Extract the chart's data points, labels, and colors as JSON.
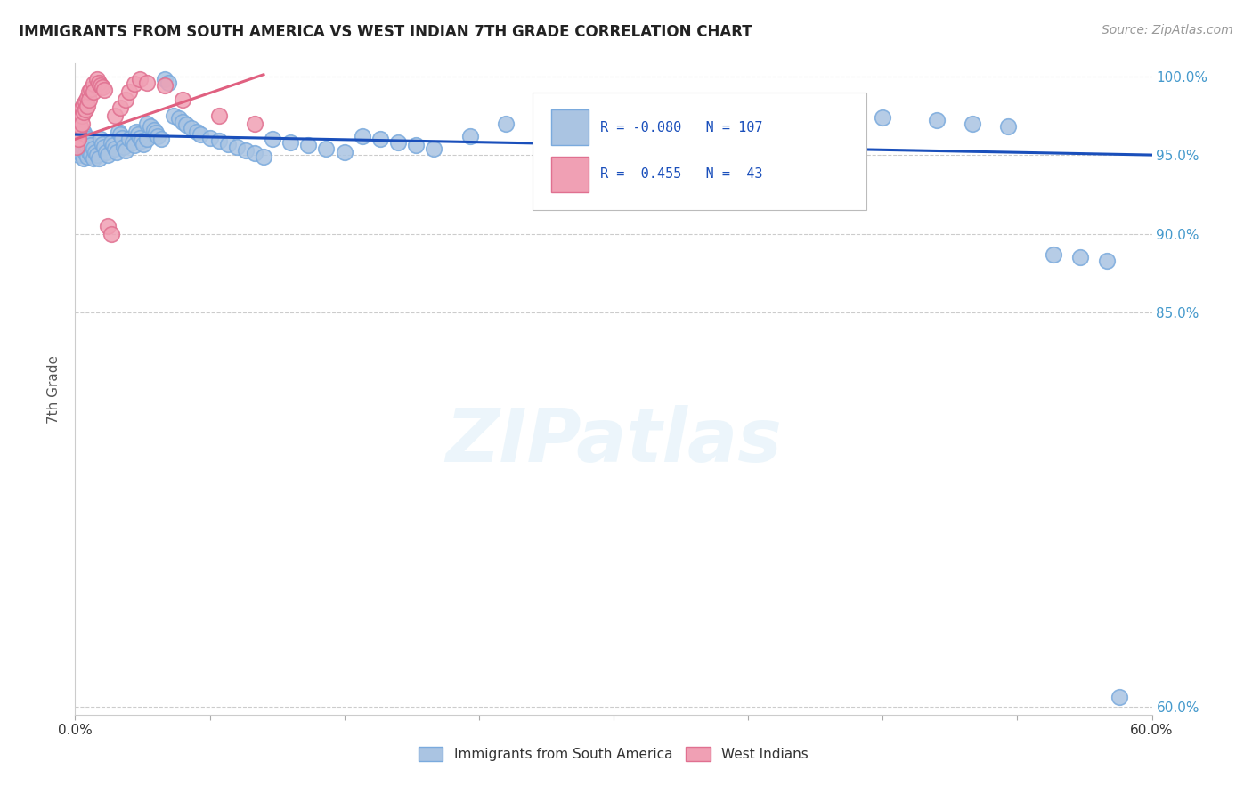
{
  "title": "IMMIGRANTS FROM SOUTH AMERICA VS WEST INDIAN 7TH GRADE CORRELATION CHART",
  "source": "Source: ZipAtlas.com",
  "ylabel": "7th Grade",
  "xlim": [
    0.0,
    0.6
  ],
  "ylim": [
    0.595,
    1.008
  ],
  "legend_blue_label": "Immigrants from South America",
  "legend_pink_label": "West Indians",
  "R_blue": -0.08,
  "N_blue": 107,
  "R_pink": 0.455,
  "N_pink": 43,
  "blue_color": "#aac4e2",
  "pink_color": "#f0a0b4",
  "blue_edge_color": "#7aaadd",
  "pink_edge_color": "#e07090",
  "blue_line_color": "#1a4fbb",
  "pink_line_color": "#e06080",
  "watermark": "ZIPatlas",
  "ytick_positions": [
    0.6,
    0.85,
    0.9,
    0.95,
    1.0
  ],
  "ytick_labels": [
    "60.0%",
    "85.0%",
    "90.0%",
    "95.0%",
    "100.0%"
  ],
  "blue_line_x": [
    0.0,
    0.6
  ],
  "blue_line_y": [
    0.963,
    0.95
  ],
  "pink_line_x": [
    0.0,
    0.105
  ],
  "pink_line_y": [
    0.96,
    1.001
  ],
  "blue_scatter_x": [
    0.001,
    0.001,
    0.001,
    0.002,
    0.002,
    0.002,
    0.002,
    0.002,
    0.003,
    0.003,
    0.003,
    0.003,
    0.004,
    0.004,
    0.004,
    0.004,
    0.005,
    0.005,
    0.005,
    0.005,
    0.006,
    0.006,
    0.006,
    0.007,
    0.007,
    0.007,
    0.008,
    0.008,
    0.009,
    0.009,
    0.01,
    0.01,
    0.011,
    0.012,
    0.013,
    0.014,
    0.015,
    0.016,
    0.017,
    0.018,
    0.02,
    0.021,
    0.022,
    0.023,
    0.024,
    0.025,
    0.026,
    0.027,
    0.028,
    0.03,
    0.032,
    0.033,
    0.034,
    0.035,
    0.036,
    0.037,
    0.038,
    0.04,
    0.04,
    0.042,
    0.044,
    0.045,
    0.046,
    0.048,
    0.05,
    0.052,
    0.055,
    0.058,
    0.06,
    0.062,
    0.065,
    0.068,
    0.07,
    0.075,
    0.08,
    0.085,
    0.09,
    0.095,
    0.1,
    0.105,
    0.11,
    0.12,
    0.13,
    0.14,
    0.15,
    0.16,
    0.17,
    0.18,
    0.19,
    0.2,
    0.22,
    0.24,
    0.26,
    0.28,
    0.3,
    0.32,
    0.35,
    0.38,
    0.42,
    0.45,
    0.48,
    0.5,
    0.52,
    0.545,
    0.56,
    0.575,
    0.582
  ],
  "blue_scatter_y": [
    0.965,
    0.96,
    0.955,
    0.97,
    0.965,
    0.96,
    0.955,
    0.95,
    0.968,
    0.963,
    0.958,
    0.952,
    0.966,
    0.961,
    0.956,
    0.95,
    0.964,
    0.959,
    0.954,
    0.948,
    0.962,
    0.957,
    0.951,
    0.96,
    0.955,
    0.949,
    0.958,
    0.952,
    0.956,
    0.95,
    0.954,
    0.948,
    0.952,
    0.95,
    0.948,
    0.96,
    0.957,
    0.955,
    0.952,
    0.95,
    0.958,
    0.956,
    0.954,
    0.952,
    0.965,
    0.963,
    0.961,
    0.955,
    0.953,
    0.96,
    0.958,
    0.956,
    0.965,
    0.963,
    0.961,
    0.959,
    0.957,
    0.97,
    0.96,
    0.968,
    0.966,
    0.964,
    0.962,
    0.96,
    0.998,
    0.996,
    0.975,
    0.973,
    0.971,
    0.969,
    0.967,
    0.965,
    0.963,
    0.961,
    0.959,
    0.957,
    0.955,
    0.953,
    0.951,
    0.949,
    0.96,
    0.958,
    0.956,
    0.954,
    0.952,
    0.962,
    0.96,
    0.958,
    0.956,
    0.954,
    0.962,
    0.97,
    0.968,
    0.966,
    0.964,
    0.972,
    0.97,
    0.968,
    0.966,
    0.974,
    0.972,
    0.97,
    0.968,
    0.887,
    0.885,
    0.883,
    0.606
  ],
  "pink_scatter_x": [
    0.001,
    0.001,
    0.001,
    0.001,
    0.002,
    0.002,
    0.002,
    0.002,
    0.003,
    0.003,
    0.003,
    0.004,
    0.004,
    0.004,
    0.005,
    0.005,
    0.006,
    0.006,
    0.007,
    0.007,
    0.008,
    0.008,
    0.009,
    0.01,
    0.01,
    0.012,
    0.013,
    0.014,
    0.015,
    0.016,
    0.018,
    0.02,
    0.022,
    0.025,
    0.028,
    0.03,
    0.033,
    0.036,
    0.04,
    0.05,
    0.06,
    0.08,
    0.1
  ],
  "pink_scatter_y": [
    0.97,
    0.965,
    0.96,
    0.955,
    0.975,
    0.97,
    0.965,
    0.96,
    0.978,
    0.973,
    0.968,
    0.98,
    0.975,
    0.97,
    0.982,
    0.977,
    0.984,
    0.979,
    0.986,
    0.981,
    0.99,
    0.985,
    0.992,
    0.995,
    0.99,
    0.998,
    0.996,
    0.994,
    0.993,
    0.991,
    0.905,
    0.9,
    0.975,
    0.98,
    0.985,
    0.99,
    0.995,
    0.998,
    0.996,
    0.994,
    0.985,
    0.975,
    0.97
  ]
}
